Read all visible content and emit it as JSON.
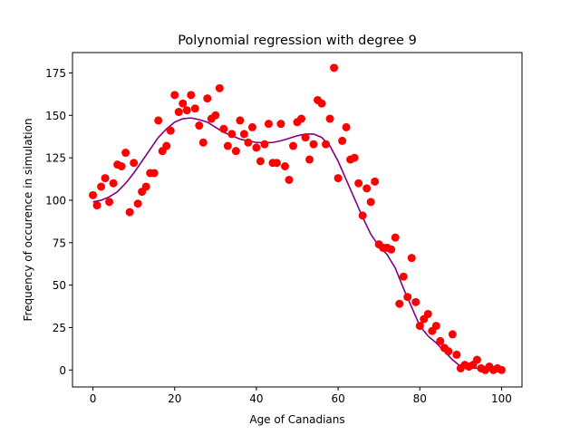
{
  "chart_data": {
    "type": "scatter",
    "title": "Polynomial regression with degree 9",
    "xlabel": "Age of Canadians",
    "ylabel": "Frequency of occurence in simulation",
    "xlim": [
      -5,
      105
    ],
    "ylim": [
      -10,
      187
    ],
    "x_ticks": [
      0,
      20,
      40,
      60,
      80,
      100
    ],
    "y_ticks": [
      0,
      25,
      50,
      75,
      100,
      125,
      150,
      175
    ],
    "grid": false,
    "legend": "none",
    "colors": {
      "points": "#ff0000",
      "fit_line": "#800080"
    },
    "series": [
      {
        "kind": "scatter",
        "x": [
          0,
          1,
          2,
          3,
          4,
          5,
          6,
          7,
          8,
          9,
          10,
          11,
          12,
          13,
          14,
          15,
          16,
          17,
          18,
          19,
          20,
          21,
          22,
          23,
          24,
          25,
          26,
          27,
          28,
          29,
          30,
          31,
          32,
          33,
          34,
          35,
          36,
          37,
          38,
          39,
          40,
          41,
          42,
          43,
          44,
          45,
          46,
          47,
          48,
          49,
          50,
          51,
          52,
          53,
          54,
          55,
          56,
          57,
          58,
          59,
          60,
          61,
          62,
          63,
          64,
          65,
          66,
          67,
          68,
          69,
          70,
          71,
          72,
          73,
          74,
          75,
          76,
          77,
          78,
          79,
          80,
          81,
          82,
          83,
          84,
          85,
          86,
          87,
          88,
          89,
          90,
          91,
          92,
          93,
          94,
          95,
          96,
          97,
          98,
          99,
          100
        ],
        "y": [
          103,
          97,
          108,
          113,
          99,
          110,
          121,
          120,
          128,
          93,
          122,
          98,
          105,
          108,
          116,
          116,
          147,
          129,
          132,
          141,
          162,
          152,
          157,
          153,
          162,
          154,
          144,
          134,
          160,
          148,
          150,
          166,
          142,
          132,
          139,
          129,
          147,
          139,
          134,
          143,
          131,
          123,
          133,
          145,
          122,
          122,
          145,
          120,
          112,
          132,
          146,
          148,
          137,
          124,
          133,
          159,
          157,
          133,
          148,
          178,
          113,
          135,
          143,
          124,
          125,
          110,
          91,
          107,
          99,
          111,
          74,
          72,
          72,
          71,
          78,
          39,
          55,
          43,
          66,
          40,
          26,
          30,
          33,
          23,
          26,
          17,
          13,
          11,
          21,
          9,
          1,
          3,
          2,
          3,
          6,
          1,
          0,
          2,
          0,
          1,
          0
        ]
      },
      {
        "kind": "line",
        "x": [
          0,
          2,
          4,
          6,
          8,
          10,
          12,
          14,
          16,
          18,
          20,
          22,
          24,
          26,
          28,
          30,
          32,
          34,
          36,
          38,
          40,
          42,
          44,
          46,
          48,
          50,
          52,
          54,
          56,
          58,
          60,
          62,
          64,
          66,
          68,
          70,
          72,
          74,
          76,
          78,
          80,
          82,
          84,
          86,
          88,
          90,
          92,
          94,
          96,
          98,
          100
        ],
        "y": [
          99,
          100,
          102,
          105,
          110,
          116,
          123,
          130,
          137,
          142,
          146,
          148,
          148.5,
          147.5,
          146,
          143,
          140,
          138,
          136,
          135,
          134,
          134,
          134,
          135,
          136.5,
          138,
          139,
          139,
          137,
          132,
          123,
          112,
          101,
          90,
          80,
          73,
          68,
          60,
          48,
          37,
          26,
          20,
          16,
          11,
          6,
          2,
          1.5,
          1,
          0.5,
          0.3,
          0
        ]
      }
    ]
  }
}
